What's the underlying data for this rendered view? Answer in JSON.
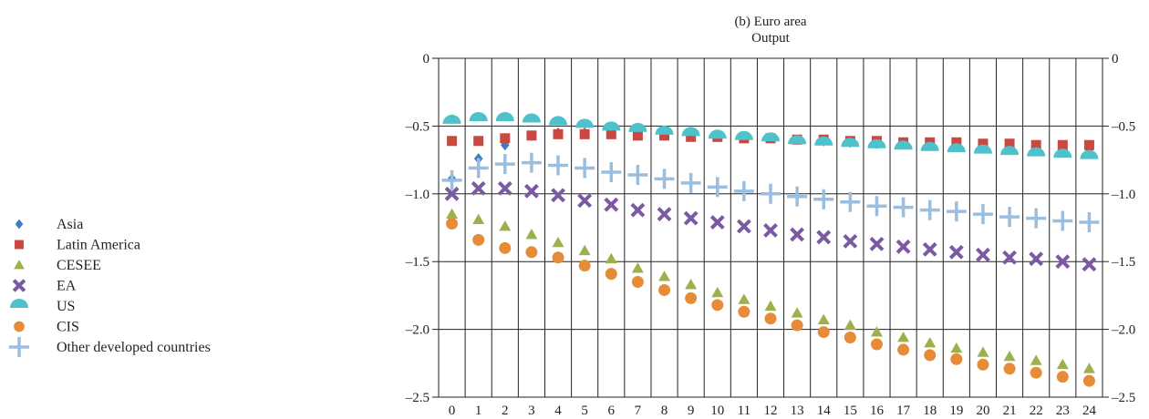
{
  "chart_data": {
    "type": "scatter",
    "title": "(b) Euro area",
    "subtitle": "Output",
    "xlabel": "",
    "ylabel": "",
    "x": [
      0,
      1,
      2,
      3,
      4,
      5,
      6,
      7,
      8,
      9,
      10,
      11,
      12,
      13,
      14,
      15,
      16,
      17,
      18,
      19,
      20,
      21,
      22,
      23,
      24
    ],
    "ylim": [
      -2.5,
      0
    ],
    "yticks": [
      "0",
      "–0.5",
      "–1.0",
      "–1.5",
      "–2.0",
      "–2.5"
    ],
    "ytick_values": [
      0,
      -0.5,
      -1.0,
      -1.5,
      -2.0,
      -2.5
    ],
    "xticks": [
      "0",
      "1",
      "2",
      "3",
      "4",
      "5",
      "6",
      "7",
      "8",
      "9",
      "10",
      "11",
      "12",
      "13",
      "14",
      "15",
      "16",
      "17",
      "18",
      "19",
      "20",
      "21",
      "22",
      "23",
      "24"
    ],
    "grid": "vertical lines at each period; horizontal lines at each y tick",
    "legend_position": "left",
    "series": [
      {
        "name": "Asia",
        "marker": "diamond",
        "color": "#3d7ebf",
        "values": [
          -0.89,
          -0.74,
          -0.64,
          -0.57,
          -0.55,
          -0.55,
          -0.55,
          -0.55,
          -0.56,
          -0.56,
          -0.57,
          -0.58,
          -0.59,
          -0.6,
          -0.61,
          -0.62,
          -0.63,
          -0.63,
          -0.64,
          -0.64,
          -0.65,
          -0.65,
          -0.66,
          -0.66,
          -0.67
        ]
      },
      {
        "name": "Latin America",
        "marker": "square",
        "color": "#c9483f",
        "values": [
          -0.61,
          -0.61,
          -0.59,
          -0.57,
          -0.56,
          -0.56,
          -0.56,
          -0.57,
          -0.57,
          -0.58,
          -0.58,
          -0.59,
          -0.59,
          -0.6,
          -0.6,
          -0.61,
          -0.61,
          -0.62,
          -0.62,
          -0.62,
          -0.63,
          -0.63,
          -0.64,
          -0.64,
          -0.64
        ]
      },
      {
        "name": "CESEE",
        "marker": "triangle",
        "color": "#9eb04c",
        "values": [
          -1.15,
          -1.19,
          -1.24,
          -1.3,
          -1.36,
          -1.42,
          -1.48,
          -1.55,
          -1.61,
          -1.67,
          -1.73,
          -1.78,
          -1.83,
          -1.88,
          -1.93,
          -1.97,
          -2.02,
          -2.06,
          -2.1,
          -2.14,
          -2.17,
          -2.2,
          -2.23,
          -2.26,
          -2.29
        ]
      },
      {
        "name": "EA",
        "marker": "x",
        "color": "#7b5aa3",
        "values": [
          -1.0,
          -0.96,
          -0.96,
          -0.98,
          -1.01,
          -1.05,
          -1.08,
          -1.12,
          -1.15,
          -1.18,
          -1.21,
          -1.24,
          -1.27,
          -1.3,
          -1.32,
          -1.35,
          -1.37,
          -1.39,
          -1.41,
          -1.43,
          -1.45,
          -1.47,
          -1.48,
          -1.5,
          -1.52
        ]
      },
      {
        "name": "US",
        "marker": "semicircle",
        "color": "#4fc1cb",
        "values": [
          -0.47,
          -0.45,
          -0.45,
          -0.46,
          -0.48,
          -0.5,
          -0.52,
          -0.53,
          -0.55,
          -0.56,
          -0.58,
          -0.59,
          -0.6,
          -0.62,
          -0.63,
          -0.64,
          -0.65,
          -0.66,
          -0.67,
          -0.68,
          -0.69,
          -0.7,
          -0.71,
          -0.72,
          -0.73
        ]
      },
      {
        "name": "CIS",
        "marker": "circle",
        "color": "#e68c38",
        "values": [
          -1.22,
          -1.34,
          -1.4,
          -1.43,
          -1.47,
          -1.53,
          -1.59,
          -1.65,
          -1.71,
          -1.77,
          -1.82,
          -1.87,
          -1.92,
          -1.97,
          -2.02,
          -2.06,
          -2.11,
          -2.15,
          -2.19,
          -2.22,
          -2.26,
          -2.29,
          -2.32,
          -2.35,
          -2.38
        ]
      },
      {
        "name": "Other developed countries",
        "marker": "plus",
        "color": "#9bbedf",
        "values": [
          -0.9,
          -0.81,
          -0.78,
          -0.77,
          -0.79,
          -0.81,
          -0.84,
          -0.86,
          -0.89,
          -0.92,
          -0.95,
          -0.98,
          -1.0,
          -1.02,
          -1.04,
          -1.06,
          -1.09,
          -1.1,
          -1.12,
          -1.13,
          -1.15,
          -1.17,
          -1.18,
          -1.2,
          -1.21
        ]
      }
    ]
  }
}
